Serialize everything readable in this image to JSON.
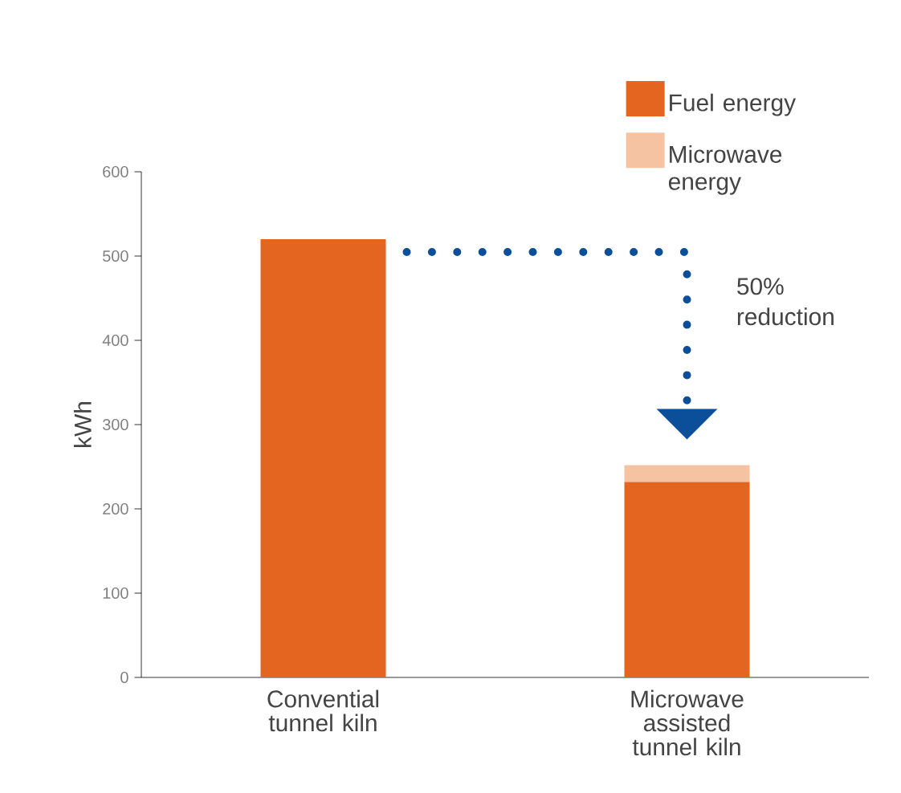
{
  "chart_data": {
    "type": "bar",
    "stacked": true,
    "ylabel": "kWh",
    "categories": [
      "Convential tunnel kiln",
      "Microwave assisted tunnel kiln"
    ],
    "series": [
      {
        "name": "Fuel energy",
        "color": "#e46520",
        "values": [
          520,
          232
        ]
      },
      {
        "name": "Microwave energy",
        "color": "#f6c3a2",
        "values": [
          null,
          20
        ]
      }
    ],
    "ylim": [
      0,
      600
    ],
    "yticks": [
      0,
      100,
      200,
      300,
      400,
      500,
      600
    ],
    "grid": false,
    "legend": "top right",
    "annotations": [
      "50% reduction"
    ]
  }
}
